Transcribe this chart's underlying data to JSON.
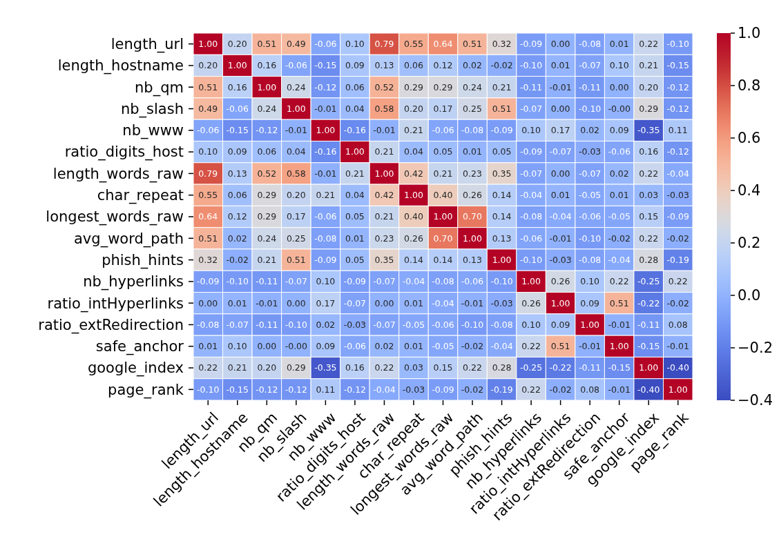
{
  "chart_data": {
    "type": "heatmap",
    "categories": [
      "length_url",
      "length_hostname",
      "nb_qm",
      "nb_slash",
      "nb_www",
      "ratio_digits_host",
      "length_words_raw",
      "char_repeat",
      "longest_words_raw",
      "avg_word_path",
      "phish_hints",
      "nb_hyperlinks",
      "ratio_intHyperlinks",
      "ratio_extRedirection",
      "safe_anchor",
      "google_index",
      "page_rank"
    ],
    "y_categories": [
      "length_url",
      "length_hostname",
      "nb_qm",
      "nb_slash",
      "nb_www",
      "ratio_digits_host",
      "length_words_raw",
      "char_repeat",
      "longest_words_raw",
      "avg_word_path",
      "phish_hints",
      "nb_hyperlinks",
      "ratio_intHyperlinks",
      "ratio_extRedirection",
      "safe_anchor",
      "google_index",
      "page_rank"
    ],
    "cells": [
      [
        1.0,
        0.2,
        0.51,
        0.49,
        -0.06,
        0.1,
        0.79,
        0.55,
        0.64,
        0.51,
        0.32,
        -0.09,
        0.0,
        -0.08,
        0.01,
        0.22,
        -0.1
      ],
      [
        0.2,
        1.0,
        0.16,
        -0.06,
        -0.15,
        0.09,
        0.13,
        0.06,
        0.12,
        0.02,
        -0.02,
        -0.1,
        0.01,
        -0.07,
        0.1,
        0.21,
        -0.15
      ],
      [
        0.51,
        0.16,
        1.0,
        0.24,
        -0.12,
        0.06,
        0.52,
        0.29,
        0.29,
        0.24,
        0.21,
        -0.11,
        -0.01,
        -0.11,
        0.0,
        0.2,
        -0.12
      ],
      [
        0.49,
        -0.06,
        0.24,
        1.0,
        -0.01,
        0.04,
        0.58,
        0.2,
        0.17,
        0.25,
        0.51,
        -0.07,
        0.0,
        -0.1,
        0.0,
        0.29,
        -0.12
      ],
      [
        -0.06,
        -0.15,
        -0.12,
        -0.01,
        1.0,
        -0.16,
        -0.01,
        0.21,
        -0.06,
        -0.08,
        -0.09,
        0.1,
        0.17,
        0.02,
        0.09,
        -0.35,
        0.11
      ],
      [
        0.1,
        0.09,
        0.06,
        0.04,
        -0.16,
        1.0,
        0.21,
        0.04,
        0.05,
        0.01,
        0.05,
        -0.09,
        -0.07,
        -0.03,
        -0.06,
        0.16,
        -0.12
      ],
      [
        0.79,
        0.13,
        0.52,
        0.58,
        -0.01,
        0.21,
        1.0,
        0.42,
        0.21,
        0.23,
        0.35,
        -0.07,
        0.0,
        -0.07,
        0.02,
        0.22,
        -0.04
      ],
      [
        0.55,
        0.06,
        0.29,
        0.2,
        0.21,
        0.04,
        0.42,
        1.0,
        0.4,
        0.26,
        0.14,
        -0.04,
        0.01,
        -0.05,
        0.01,
        0.03,
        -0.03
      ],
      [
        0.64,
        0.12,
        0.29,
        0.17,
        -0.06,
        0.05,
        0.21,
        0.4,
        1.0,
        0.7,
        0.14,
        -0.08,
        -0.04,
        -0.06,
        -0.05,
        0.15,
        -0.09
      ],
      [
        0.51,
        0.02,
        0.24,
        0.25,
        -0.08,
        0.01,
        0.23,
        0.26,
        0.7,
        1.0,
        0.13,
        -0.06,
        -0.01,
        -0.1,
        -0.02,
        0.22,
        -0.02
      ],
      [
        0.32,
        -0.02,
        0.21,
        0.51,
        -0.09,
        0.05,
        0.35,
        0.14,
        0.14,
        0.13,
        1.0,
        -0.1,
        -0.03,
        -0.08,
        -0.04,
        0.28,
        -0.19
      ],
      [
        -0.09,
        -0.1,
        -0.11,
        -0.07,
        0.1,
        -0.09,
        -0.07,
        -0.04,
        -0.08,
        -0.06,
        -0.1,
        1.0,
        0.26,
        0.1,
        0.22,
        -0.25,
        0.22
      ],
      [
        0.0,
        0.01,
        -0.01,
        0.0,
        0.17,
        -0.07,
        0.0,
        0.01,
        -0.04,
        -0.01,
        -0.03,
        0.26,
        1.0,
        0.09,
        0.51,
        -0.22,
        -0.02
      ],
      [
        -0.08,
        -0.07,
        -0.11,
        -0.1,
        0.02,
        -0.03,
        -0.07,
        -0.05,
        -0.06,
        -0.1,
        -0.08,
        0.1,
        0.09,
        1.0,
        -0.01,
        -0.11,
        0.08
      ],
      [
        0.01,
        0.1,
        0.0,
        0.0,
        0.09,
        -0.06,
        0.02,
        0.01,
        -0.05,
        -0.02,
        -0.04,
        0.22,
        0.51,
        -0.01,
        1.0,
        -0.15,
        -0.01
      ],
      [
        0.22,
        0.21,
        0.2,
        0.29,
        -0.35,
        0.16,
        0.22,
        0.03,
        0.15,
        0.22,
        0.28,
        -0.25,
        -0.22,
        -0.11,
        -0.15,
        1.0,
        -0.4
      ],
      [
        -0.1,
        -0.15,
        -0.12,
        -0.12,
        0.11,
        -0.12,
        -0.04,
        -0.03,
        -0.09,
        -0.02,
        -0.19,
        0.22,
        -0.02,
        0.08,
        -0.01,
        -0.4,
        1.0
      ]
    ],
    "cell_labels": [
      [
        "1.00",
        "0.20",
        "0.51",
        "0.49",
        "-0.06",
        "0.10",
        "0.79",
        "0.55",
        "0.64",
        "0.51",
        "0.32",
        "-0.09",
        "0.00",
        "-0.08",
        "0.01",
        "0.22",
        "-0.10"
      ],
      [
        "0.20",
        "1.00",
        "0.16",
        "-0.06",
        "-0.15",
        "0.09",
        "0.13",
        "0.06",
        "0.12",
        "0.02",
        "-0.02",
        "-0.10",
        "0.01",
        "-0.07",
        "0.10",
        "0.21",
        "-0.15"
      ],
      [
        "0.51",
        "0.16",
        "1.00",
        "0.24",
        "-0.12",
        "0.06",
        "0.52",
        "0.29",
        "0.29",
        "0.24",
        "0.21",
        "-0.11",
        "-0.01",
        "-0.11",
        "0.00",
        "0.20",
        "-0.12"
      ],
      [
        "0.49",
        "-0.06",
        "0.24",
        "1.00",
        "-0.01",
        "0.04",
        "0.58",
        "0.20",
        "0.17",
        "0.25",
        "0.51",
        "-0.07",
        "0.00",
        "-0.10",
        "-0.00",
        "0.29",
        "-0.12"
      ],
      [
        "-0.06",
        "-0.15",
        "-0.12",
        "-0.01",
        "1.00",
        "-0.16",
        "-0.01",
        "0.21",
        "-0.06",
        "-0.08",
        "-0.09",
        "0.10",
        "0.17",
        "0.02",
        "0.09",
        "-0.35",
        "0.11"
      ],
      [
        "0.10",
        "0.09",
        "0.06",
        "0.04",
        "-0.16",
        "1.00",
        "0.21",
        "0.04",
        "0.05",
        "0.01",
        "0.05",
        "-0.09",
        "-0.07",
        "-0.03",
        "-0.06",
        "0.16",
        "-0.12"
      ],
      [
        "0.79",
        "0.13",
        "0.52",
        "0.58",
        "-0.01",
        "0.21",
        "1.00",
        "0.42",
        "0.21",
        "0.23",
        "0.35",
        "-0.07",
        "0.00",
        "-0.07",
        "0.02",
        "0.22",
        "-0.04"
      ],
      [
        "0.55",
        "0.06",
        "0.29",
        "0.20",
        "0.21",
        "0.04",
        "0.42",
        "1.00",
        "0.40",
        "0.26",
        "0.14",
        "-0.04",
        "0.01",
        "-0.05",
        "0.01",
        "0.03",
        "-0.03"
      ],
      [
        "0.64",
        "0.12",
        "0.29",
        "0.17",
        "-0.06",
        "0.05",
        "0.21",
        "0.40",
        "1.00",
        "0.70",
        "0.14",
        "-0.08",
        "-0.04",
        "-0.06",
        "-0.05",
        "0.15",
        "-0.09"
      ],
      [
        "0.51",
        "0.02",
        "0.24",
        "0.25",
        "-0.08",
        "0.01",
        "0.23",
        "0.26",
        "0.70",
        "1.00",
        "0.13",
        "-0.06",
        "-0.01",
        "-0.10",
        "-0.02",
        "0.22",
        "-0.02"
      ],
      [
        "0.32",
        "-0.02",
        "0.21",
        "0.51",
        "-0.09",
        "0.05",
        "0.35",
        "0.14",
        "0.14",
        "0.13",
        "1.00",
        "-0.10",
        "-0.03",
        "-0.08",
        "-0.04",
        "0.28",
        "-0.19"
      ],
      [
        "-0.09",
        "-0.10",
        "-0.11",
        "-0.07",
        "0.10",
        "-0.09",
        "-0.07",
        "-0.04",
        "-0.08",
        "-0.06",
        "-0.10",
        "1.00",
        "0.26",
        "0.10",
        "0.22",
        "-0.25",
        "0.22"
      ],
      [
        "0.00",
        "0.01",
        "-0.01",
        "0.00",
        "0.17",
        "-0.07",
        "0.00",
        "0.01",
        "-0.04",
        "-0.01",
        "-0.03",
        "0.26",
        "1.00",
        "0.09",
        "0.51",
        "-0.22",
        "-0.02"
      ],
      [
        "-0.08",
        "-0.07",
        "-0.11",
        "-0.10",
        "0.02",
        "-0.03",
        "-0.07",
        "-0.05",
        "-0.06",
        "-0.10",
        "-0.08",
        "0.10",
        "0.09",
        "1.00",
        "-0.01",
        "-0.11",
        "0.08"
      ],
      [
        "0.01",
        "0.10",
        "0.00",
        "-0.00",
        "0.09",
        "-0.06",
        "0.02",
        "0.01",
        "-0.05",
        "-0.02",
        "-0.04",
        "0.22",
        "0.51",
        "-0.01",
        "1.00",
        "-0.15",
        "-0.01"
      ],
      [
        "0.22",
        "0.21",
        "0.20",
        "0.29",
        "-0.35",
        "0.16",
        "0.22",
        "0.03",
        "0.15",
        "0.22",
        "0.28",
        "-0.25",
        "-0.22",
        "-0.11",
        "-0.15",
        "1.00",
        "-0.40"
      ],
      [
        "-0.10",
        "-0.15",
        "-0.12",
        "-0.12",
        "0.11",
        "-0.12",
        "-0.04",
        "-0.03",
        "-0.09",
        "-0.02",
        "-0.19",
        "0.22",
        "-0.02",
        "0.08",
        "-0.01",
        "-0.40",
        "1.00"
      ]
    ],
    "clim": [
      -0.4,
      1.0
    ],
    "cticks": [
      {
        "value": -0.4,
        "label": "−0.4"
      },
      {
        "value": -0.2,
        "label": "−0.2"
      },
      {
        "value": 0,
        "label": "0.0"
      },
      {
        "value": 0.2,
        "label": "0.2"
      },
      {
        "value": 0.4,
        "label": "0.4"
      },
      {
        "value": 0.6,
        "label": "0.6"
      },
      {
        "value": 0.8,
        "label": "0.8"
      },
      {
        "value": 1.0,
        "label": "1.0"
      }
    ]
  }
}
